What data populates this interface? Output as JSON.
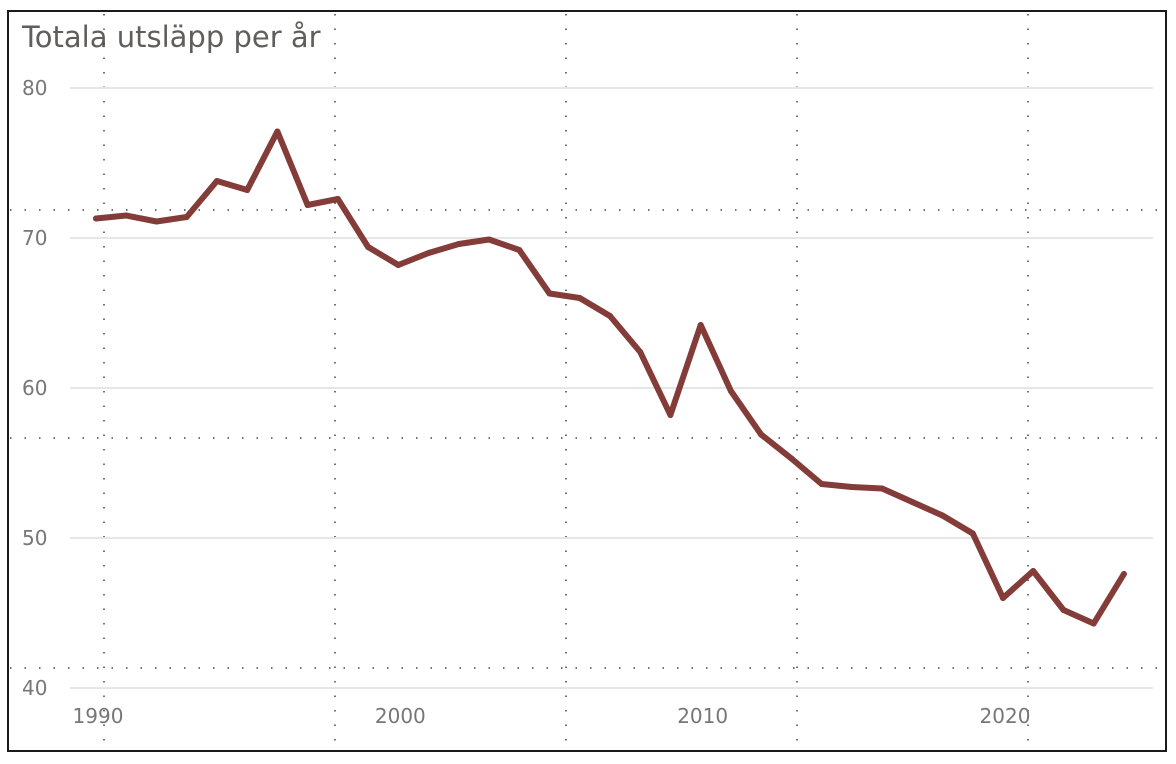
{
  "chart_data": {
    "type": "line",
    "title": "Totala utsläpp per år",
    "xlabel": "",
    "ylabel": "",
    "xlim": [
      1990,
      2025
    ],
    "ylim": [
      40,
      80
    ],
    "x_ticks": [
      1990,
      2000,
      2010,
      2020
    ],
    "y_ticks": [
      40,
      50,
      60,
      70,
      80
    ],
    "grid": true,
    "series": [
      {
        "color": "#843c39",
        "x": [
          1990,
          1991,
          1992,
          1993,
          1994,
          1995,
          1996,
          1997,
          1998,
          1999,
          2000,
          2001,
          2002,
          2003,
          2004,
          2005,
          2006,
          2007,
          2008,
          2009,
          2010,
          2011,
          2012,
          2013,
          2014,
          2015,
          2016,
          2017,
          2018,
          2019,
          2020,
          2021,
          2022,
          2023,
          2024
        ],
        "y": [
          71.3,
          71.5,
          71.1,
          71.4,
          73.8,
          73.2,
          77.1,
          72.2,
          72.6,
          69.4,
          68.2,
          69.0,
          69.6,
          69.9,
          69.2,
          66.3,
          66.0,
          64.8,
          62.4,
          58.2,
          64.2,
          59.8,
          56.9,
          55.3,
          53.6,
          53.4,
          53.3,
          52.4,
          51.5,
          50.3,
          46.0,
          47.8,
          45.2,
          44.3,
          47.6
        ]
      }
    ]
  }
}
